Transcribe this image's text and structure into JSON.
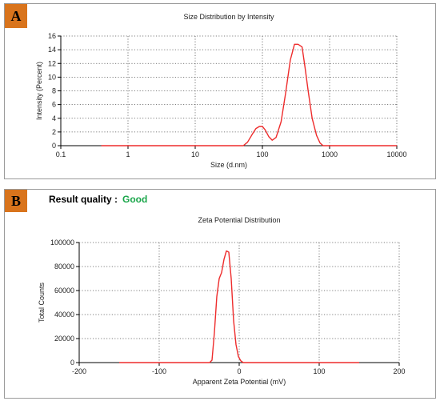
{
  "panels": {
    "a": {
      "badge": "A"
    },
    "b": {
      "badge": "B",
      "result_quality_label": "Result quality :",
      "result_quality_value": "Good"
    }
  },
  "colors": {
    "series": "#ee2c2c",
    "grid": "#555555",
    "badge": "#d9741c",
    "good": "#1aa64a"
  },
  "chart_data": [
    {
      "type": "line",
      "title": "Size Distribution by Intensity",
      "xlabel": "Size (d.nm)",
      "ylabel": "Intensity (Percent)",
      "xscale": "log",
      "xlim": [
        0.1,
        10000
      ],
      "ylim": [
        0,
        16
      ],
      "xticks": [
        0.1,
        1,
        10,
        100,
        1000,
        10000
      ],
      "xtick_labels": [
        "0.1",
        "1",
        "10",
        "100",
        "1000",
        "10000"
      ],
      "yticks": [
        0,
        2,
        4,
        6,
        8,
        10,
        12,
        14,
        16
      ],
      "ytick_labels": [
        "0",
        "2",
        "4",
        "6",
        "8",
        "10",
        "12",
        "14",
        "16"
      ],
      "grid": true,
      "series": [
        {
          "x": [
            0.4,
            1,
            10,
            40,
            52,
            60,
            70,
            80,
            90,
            100,
            110,
            125,
            140,
            160,
            190,
            220,
            260,
            300,
            340,
            390,
            430,
            480,
            550,
            640,
            720,
            800,
            900,
            2000,
            5000,
            10000
          ],
          "y": [
            0,
            0,
            0,
            0,
            0,
            0.5,
            1.6,
            2.5,
            2.8,
            2.8,
            2.3,
            1.3,
            0.8,
            1.2,
            3.5,
            7.5,
            12.5,
            14.8,
            14.8,
            14.4,
            11.5,
            8,
            4,
            1.5,
            0.4,
            0,
            0,
            0,
            0,
            0
          ]
        }
      ]
    },
    {
      "type": "line",
      "title": "Zeta Potential Distribution",
      "xlabel": "Apparent Zeta Potential (mV)",
      "ylabel": "Total Counts",
      "xlim": [
        -200,
        200
      ],
      "ylim": [
        0,
        100000
      ],
      "xticks": [
        -200,
        -100,
        0,
        100,
        200
      ],
      "xtick_labels": [
        "-200",
        "-100",
        "0",
        "100",
        "200"
      ],
      "yticks": [
        0,
        20000,
        40000,
        60000,
        80000,
        100000
      ],
      "ytick_labels": [
        "0",
        "20000",
        "40000",
        "60000",
        "80000",
        "100000"
      ],
      "grid": true,
      "series": [
        {
          "x": [
            -150,
            -100,
            -50,
            -37,
            -34,
            -31,
            -28,
            -25,
            -22,
            -19,
            -16,
            -13,
            -10,
            -7,
            -4,
            -1,
            2,
            5,
            50,
            100,
            150
          ],
          "y": [
            0,
            0,
            0,
            0,
            2000,
            25000,
            55000,
            70000,
            75000,
            86000,
            93000,
            92000,
            70000,
            35000,
            15000,
            5000,
            1500,
            0,
            0,
            0,
            0
          ]
        }
      ]
    }
  ]
}
